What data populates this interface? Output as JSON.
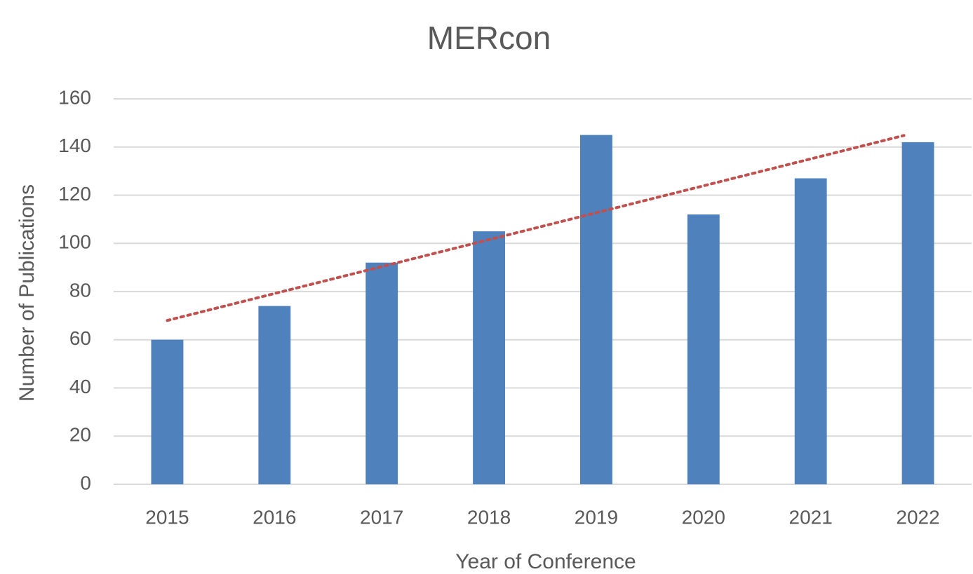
{
  "chart_data": {
    "type": "bar",
    "title": "MERcon",
    "x_label": "Year of Conference",
    "y_label": "Number of Publications",
    "categories": [
      "2015",
      "2016",
      "2017",
      "2018",
      "2019",
      "2020",
      "2021",
      "2022"
    ],
    "values": [
      60,
      74,
      92,
      105,
      145,
      112,
      127,
      142
    ],
    "color": "#4f81bd",
    "ylim": [
      0,
      160
    ],
    "yticks": [
      0,
      20,
      40,
      60,
      80,
      100,
      120,
      140,
      160
    ],
    "grid": true,
    "trendline": {
      "kind": "linear",
      "color": "#c0504d",
      "style": "dotted"
    }
  }
}
